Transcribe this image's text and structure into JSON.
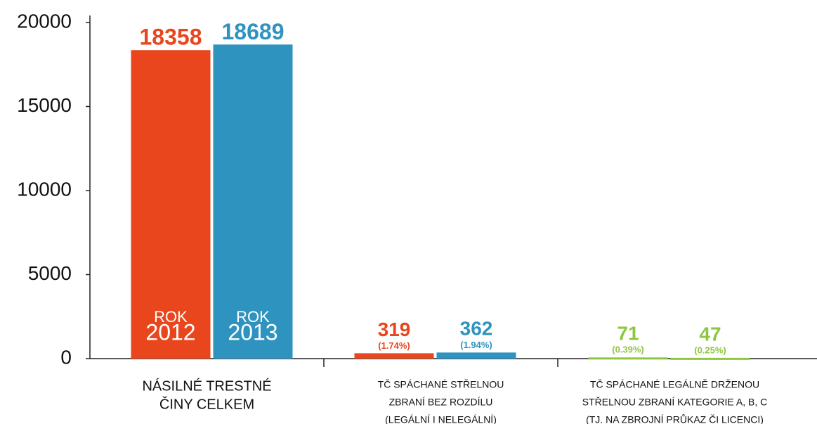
{
  "chart_data": {
    "type": "bar",
    "categories": [
      [
        "NÁSILNÉ TRESTNÉ",
        "ČINY CELKEM"
      ],
      [
        "TČ SPÁCHANÉ STŘELNOU",
        "ZBRANÍ BEZ ROZDÍLU",
        "(LEGÁLNÍ I NELEGÁLNÍ)"
      ],
      [
        "TČ SPÁCHANÉ LEGÁLNĚ DRŽENOU",
        "STŘELNOU ZBRANÍ KATEGORIE A, B, C",
        "(TJ. NA ZBROJNÍ PRŮKAZ ČI LICENCI)"
      ]
    ],
    "series": [
      {
        "label": [
          "ROK",
          "2012"
        ],
        "values": [
          18358,
          319,
          71
        ],
        "percent_labels": [
          null,
          "(1.74%)",
          "(0.39%)"
        ],
        "colors": [
          "#e9461d",
          "#e9461d",
          "#8dc63f"
        ]
      },
      {
        "label": [
          "ROK",
          "2013"
        ],
        "values": [
          18689,
          362,
          47
        ],
        "percent_labels": [
          null,
          "(1.94%)",
          "(0.25%)"
        ],
        "colors": [
          "#2e93bf",
          "#2e93bf",
          "#8dc63f"
        ]
      }
    ],
    "ylim": [
      0,
      20000
    ],
    "yticks": [
      0,
      5000,
      10000,
      15000,
      20000
    ]
  }
}
